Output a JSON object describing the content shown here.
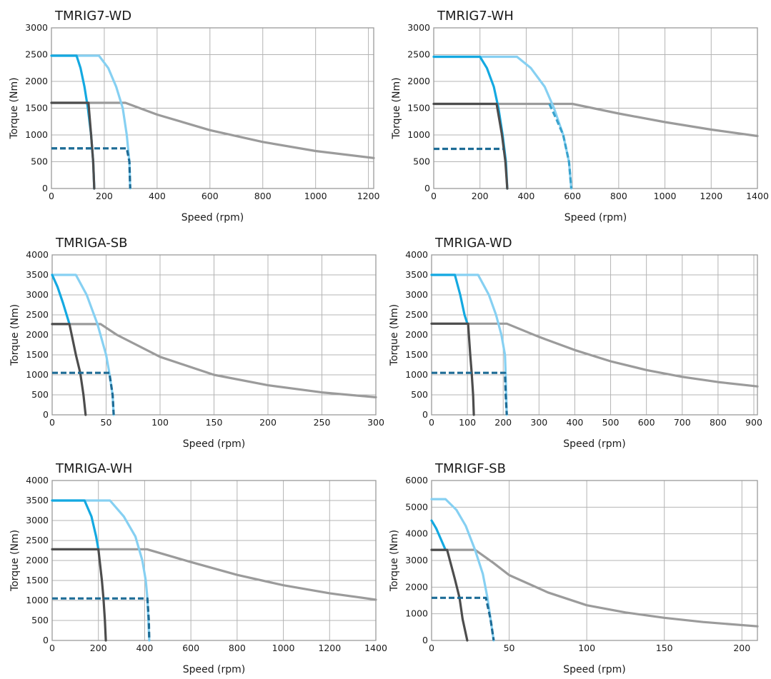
{
  "chart_data": [
    {
      "type": "line",
      "title": "TMRIG7-WD",
      "xlabel": "Speed (rpm)",
      "ylabel": "Torque (Nm)",
      "xlim": [
        0,
        1220
      ],
      "ylim": [
        0,
        3000
      ],
      "x_ticks": [
        0,
        200,
        400,
        600,
        800,
        1000,
        1200
      ],
      "y_ticks": [
        0,
        500,
        1000,
        1500,
        2000,
        2500,
        3000
      ],
      "grid": true,
      "series": [
        {
          "color": "#9b9b9b",
          "style": "solid",
          "points": [
            [
              0,
              1600
            ],
            [
              280,
              1600
            ],
            [
              400,
              1380
            ],
            [
              600,
              1090
            ],
            [
              800,
              870
            ],
            [
              1000,
              700
            ],
            [
              1220,
              570
            ]
          ]
        },
        {
          "color": "#86d0f2",
          "style": "solid",
          "points": [
            [
              0,
              2480
            ],
            [
              180,
              2480
            ],
            [
              215,
              2250
            ],
            [
              245,
              1900
            ],
            [
              270,
              1500
            ],
            [
              285,
              1000
            ],
            [
              295,
              500
            ],
            [
              298,
              0
            ]
          ]
        },
        {
          "color": "#14a9e1",
          "style": "solid",
          "points": [
            [
              0,
              2480
            ],
            [
              95,
              2480
            ],
            [
              110,
              2250
            ],
            [
              125,
              1900
            ],
            [
              138,
              1500
            ],
            [
              150,
              1000
            ],
            [
              158,
              500
            ],
            [
              162,
              0
            ]
          ]
        },
        {
          "color": "#4d4d4d",
          "style": "solid",
          "points": [
            [
              0,
              1600
            ],
            [
              140,
              1600
            ],
            [
              150,
              1000
            ],
            [
              158,
              500
            ],
            [
              162,
              0
            ]
          ]
        },
        {
          "color": "#1d6c96",
          "style": "dashed",
          "points": [
            [
              0,
              750
            ],
            [
              285,
              750
            ],
            [
              295,
              500
            ],
            [
              298,
              0
            ]
          ]
        },
        {
          "color": "#1d6c96",
          "style": "dashed",
          "points": [
            [
              0,
              750
            ],
            [
              153,
              750
            ]
          ]
        }
      ]
    },
    {
      "type": "line",
      "title": "TMRIG7-WH",
      "xlabel": "Speed (rpm)",
      "ylabel": "Torque (Nm)",
      "xlim": [
        0,
        1400
      ],
      "ylim": [
        0,
        3000
      ],
      "x_ticks": [
        0,
        200,
        400,
        600,
        800,
        1000,
        1200,
        1400
      ],
      "y_ticks": [
        0,
        500,
        1000,
        1500,
        2000,
        2500,
        3000
      ],
      "grid": true,
      "series": [
        {
          "color": "#9b9b9b",
          "style": "solid",
          "points": [
            [
              0,
              1580
            ],
            [
              600,
              1580
            ],
            [
              800,
              1400
            ],
            [
              1000,
              1240
            ],
            [
              1200,
              1100
            ],
            [
              1400,
              980
            ]
          ]
        },
        {
          "color": "#86d0f2",
          "style": "solid",
          "points": [
            [
              0,
              2460
            ],
            [
              360,
              2460
            ],
            [
              420,
              2250
            ],
            [
              480,
              1900
            ],
            [
              520,
              1500
            ],
            [
              560,
              1000
            ],
            [
              585,
              500
            ],
            [
              595,
              0
            ]
          ]
        },
        {
          "color": "#14a9e1",
          "style": "solid",
          "points": [
            [
              0,
              2460
            ],
            [
              200,
              2460
            ],
            [
              230,
              2250
            ],
            [
              260,
              1900
            ],
            [
              280,
              1500
            ],
            [
              298,
              1000
            ],
            [
              312,
              500
            ],
            [
              318,
              0
            ]
          ]
        },
        {
          "color": "#4d4d4d",
          "style": "solid",
          "points": [
            [
              0,
              1580
            ],
            [
              272,
              1580
            ],
            [
              295,
              1000
            ],
            [
              310,
              500
            ],
            [
              318,
              0
            ]
          ]
        },
        {
          "color": "#3aa3cd",
          "style": "dashed",
          "points": [
            [
              500,
              1580
            ],
            [
              530,
              1300
            ],
            [
              560,
              1000
            ],
            [
              585,
              500
            ],
            [
              595,
              0
            ]
          ]
        },
        {
          "color": "#1d6c96",
          "style": "dashed",
          "points": [
            [
              0,
              740
            ],
            [
              300,
              740
            ]
          ]
        }
      ]
    },
    {
      "type": "line",
      "title": "TMRIGA-SB",
      "xlabel": "Speed (rpm)",
      "ylabel": "Torque (Nm)",
      "xlim": [
        0,
        300
      ],
      "ylim": [
        0,
        4000
      ],
      "x_ticks": [
        0,
        50,
        100,
        150,
        200,
        250,
        300
      ],
      "y_ticks": [
        0,
        500,
        1000,
        1500,
        2000,
        2500,
        3000,
        3500,
        4000
      ],
      "grid": true,
      "series": [
        {
          "color": "#9b9b9b",
          "style": "solid",
          "points": [
            [
              0,
              2270
            ],
            [
              45,
              2270
            ],
            [
              60,
              2000
            ],
            [
              100,
              1450
            ],
            [
              150,
              1000
            ],
            [
              200,
              740
            ],
            [
              250,
              560
            ],
            [
              300,
              440
            ]
          ]
        },
        {
          "color": "#86d0f2",
          "style": "solid",
          "points": [
            [
              0,
              3500
            ],
            [
              22,
              3500
            ],
            [
              32,
              3000
            ],
            [
              42,
              2270
            ],
            [
              50,
              1500
            ],
            [
              53,
              1050
            ],
            [
              56,
              500
            ],
            [
              57,
              0
            ]
          ]
        },
        {
          "color": "#14a9e1",
          "style": "solid",
          "points": [
            [
              0,
              3500
            ],
            [
              5,
              3200
            ],
            [
              10,
              2800
            ],
            [
              16,
              2270
            ]
          ]
        },
        {
          "color": "#4d4d4d",
          "style": "solid",
          "points": [
            [
              0,
              2270
            ],
            [
              16,
              2270
            ],
            [
              22,
              1500
            ],
            [
              26,
              1050
            ],
            [
              29,
              500
            ],
            [
              31,
              0
            ]
          ]
        },
        {
          "color": "#1d6c96",
          "style": "dashed",
          "points": [
            [
              0,
              1050
            ],
            [
              53,
              1050
            ],
            [
              56,
              500
            ],
            [
              57,
              0
            ]
          ]
        }
      ]
    },
    {
      "type": "line",
      "title": "TMRIGA-WD",
      "xlabel": "Speed (rpm)",
      "ylabel": "Torque (Nm)",
      "xlim": [
        0,
        910
      ],
      "ylim": [
        0,
        4000
      ],
      "x_ticks": [
        0,
        100,
        200,
        300,
        400,
        500,
        600,
        700,
        800,
        900
      ],
      "y_ticks": [
        0,
        500,
        1000,
        1500,
        2000,
        2500,
        3000,
        3500,
        4000
      ],
      "grid": true,
      "series": [
        {
          "color": "#9b9b9b",
          "style": "solid",
          "points": [
            [
              0,
              2280
            ],
            [
              210,
              2280
            ],
            [
              300,
              1950
            ],
            [
              400,
              1620
            ],
            [
              500,
              1340
            ],
            [
              600,
              1120
            ],
            [
              700,
              950
            ],
            [
              800,
              820
            ],
            [
              910,
              710
            ]
          ]
        },
        {
          "color": "#86d0f2",
          "style": "solid",
          "points": [
            [
              0,
              3500
            ],
            [
              130,
              3500
            ],
            [
              160,
              3000
            ],
            [
              180,
              2500
            ],
            [
              195,
              2000
            ],
            [
              205,
              1500
            ],
            [
              207,
              1000
            ],
            [
              210,
              0
            ]
          ]
        },
        {
          "color": "#14a9e1",
          "style": "solid",
          "points": [
            [
              0,
              3500
            ],
            [
              65,
              3500
            ],
            [
              80,
              3000
            ],
            [
              92,
              2500
            ],
            [
              100,
              2280
            ]
          ]
        },
        {
          "color": "#4d4d4d",
          "style": "solid",
          "points": [
            [
              0,
              2280
            ],
            [
              102,
              2280
            ],
            [
              108,
              1500
            ],
            [
              112,
              1050
            ],
            [
              116,
              500
            ],
            [
              118,
              0
            ]
          ]
        },
        {
          "color": "#1d6c96",
          "style": "dashed",
          "points": [
            [
              0,
              1050
            ],
            [
              205,
              1050
            ],
            [
              207,
              500
            ],
            [
              210,
              0
            ]
          ]
        }
      ]
    },
    {
      "type": "line",
      "title": "TMRIGA-WH",
      "xlabel": "Speed (rpm)",
      "ylabel": "Torque (Nm)",
      "xlim": [
        0,
        1400
      ],
      "ylim": [
        0,
        4000
      ],
      "x_ticks": [
        0,
        200,
        400,
        600,
        800,
        1000,
        1200,
        1400
      ],
      "y_ticks": [
        0,
        500,
        1000,
        1500,
        2000,
        2500,
        3000,
        3500,
        4000
      ],
      "grid": true,
      "series": [
        {
          "color": "#9b9b9b",
          "style": "solid",
          "points": [
            [
              0,
              2280
            ],
            [
              410,
              2280
            ],
            [
              600,
              1960
            ],
            [
              800,
              1640
            ],
            [
              1000,
              1380
            ],
            [
              1200,
              1180
            ],
            [
              1400,
              1020
            ]
          ]
        },
        {
          "color": "#86d0f2",
          "style": "solid",
          "points": [
            [
              0,
              3500
            ],
            [
              250,
              3500
            ],
            [
              310,
              3100
            ],
            [
              360,
              2600
            ],
            [
              390,
              2000
            ],
            [
              405,
              1500
            ],
            [
              412,
              1050
            ],
            [
              420,
              0
            ]
          ]
        },
        {
          "color": "#14a9e1",
          "style": "solid",
          "points": [
            [
              0,
              3500
            ],
            [
              140,
              3500
            ],
            [
              170,
              3100
            ],
            [
              190,
              2600
            ],
            [
              200,
              2280
            ]
          ]
        },
        {
          "color": "#4d4d4d",
          "style": "solid",
          "points": [
            [
              0,
              2280
            ],
            [
              200,
              2280
            ],
            [
              215,
              1500
            ],
            [
              222,
              1050
            ],
            [
              228,
              500
            ],
            [
              232,
              0
            ]
          ]
        },
        {
          "color": "#1d6c96",
          "style": "dashed",
          "points": [
            [
              0,
              1050
            ],
            [
              412,
              1050
            ],
            [
              418,
              500
            ],
            [
              420,
              0
            ]
          ]
        }
      ]
    },
    {
      "type": "line",
      "title": "TMRIGF-SB",
      "xlabel": "Speed (rpm)",
      "ylabel": "Torque (Nm)",
      "xlim": [
        0,
        210
      ],
      "ylim": [
        0,
        6000
      ],
      "x_ticks": [
        0,
        50,
        100,
        150,
        200
      ],
      "y_ticks": [
        0,
        1000,
        2000,
        3000,
        4000,
        5000,
        6000
      ],
      "grid": true,
      "series": [
        {
          "color": "#9b9b9b",
          "style": "solid",
          "points": [
            [
              0,
              3400
            ],
            [
              28,
              3400
            ],
            [
              40,
              2900
            ],
            [
              50,
              2450
            ],
            [
              75,
              1800
            ],
            [
              100,
              1320
            ],
            [
              125,
              1050
            ],
            [
              150,
              850
            ],
            [
              175,
              690
            ],
            [
              210,
              530
            ]
          ]
        },
        {
          "color": "#86d0f2",
          "style": "solid",
          "points": [
            [
              0,
              5300
            ],
            [
              9,
              5300
            ],
            [
              16,
              4900
            ],
            [
              22,
              4300
            ],
            [
              28,
              3400
            ],
            [
              33,
              2500
            ],
            [
              36,
              1600
            ],
            [
              38,
              800
            ],
            [
              40,
              0
            ]
          ]
        },
        {
          "color": "#14a9e1",
          "style": "solid",
          "points": [
            [
              0,
              4500
            ],
            [
              3,
              4200
            ],
            [
              6,
              3800
            ],
            [
              9,
              3400
            ]
          ]
        },
        {
          "color": "#4d4d4d",
          "style": "solid",
          "points": [
            [
              0,
              3400
            ],
            [
              10,
              3400
            ],
            [
              15,
              2300
            ],
            [
              18,
              1600
            ],
            [
              20,
              800
            ],
            [
              23,
              0
            ]
          ]
        },
        {
          "color": "#1d6c96",
          "style": "dashed",
          "points": [
            [
              0,
              1600
            ],
            [
              35,
              1600
            ],
            [
              38,
              800
            ],
            [
              40,
              0
            ]
          ]
        }
      ]
    }
  ]
}
